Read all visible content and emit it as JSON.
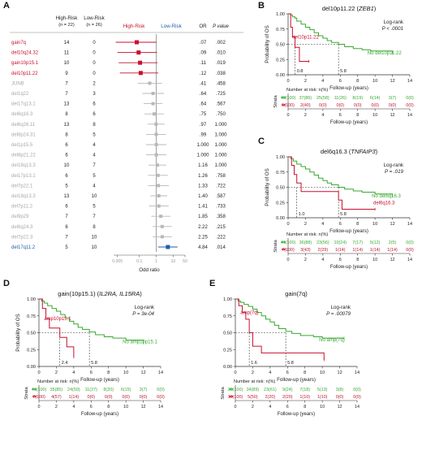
{
  "figure": {
    "panel_labels": [
      "A",
      "B",
      "C",
      "D",
      "E"
    ]
  },
  "colors": {
    "high_risk": "#c8102e",
    "low_risk": "#1f5fa8",
    "group_green": "#3aa832",
    "group_red": "#c8102e",
    "nonsig_gray": "#b8b8b8",
    "forest_header_high": "#c8102e",
    "forest_header_low": "#1f5fa8"
  },
  "chart_data": [
    {
      "type": "forest",
      "panel": "A",
      "headers": {
        "high_risk": "High-Risk",
        "high_risk_n": "(n = 22)",
        "low_risk": "Low-Risk",
        "low_risk_n": "(n = 26)",
        "direction_high": "High-Risk",
        "direction_low": "Low-Risk",
        "or": "OR",
        "pvalue": "P value"
      },
      "xlabel": "Odd ratio",
      "xscale": "log",
      "xlim": [
        0.003,
        50
      ],
      "xticks": [
        0.005,
        0.1,
        1,
        10,
        50
      ],
      "xtick_labels": [
        "0.005",
        "0.1",
        "1",
        "10",
        "50"
      ],
      "rows": [
        {
          "label": "gain7q",
          "high": "14",
          "low": "0",
          "or": 0.07,
          "or_text": ".07",
          "p": ".002",
          "sig": "high",
          "ci": [
            0.004,
            1.0
          ]
        },
        {
          "label": "del10q24.32",
          "high": "11",
          "low": "0",
          "or": 0.09,
          "or_text": ".09",
          "p": ".010",
          "sig": "high",
          "ci": [
            0.005,
            1.1
          ]
        },
        {
          "label": "gain10p15.1",
          "high": "10",
          "low": "0",
          "or": 0.11,
          "or_text": ".11",
          "p": ".019",
          "sig": "high",
          "ci": [
            0.006,
            1.2
          ]
        },
        {
          "label": "del10p11.22",
          "high": "9",
          "low": "0",
          "or": 0.12,
          "or_text": ".12",
          "p": ".038",
          "sig": "high",
          "ci": [
            0.007,
            1.3
          ]
        },
        {
          "label": "JUNB",
          "high": "7",
          "low": "2",
          "or": 0.41,
          "or_text": ".41",
          "p": ".458",
          "sig": "none",
          "ci": [
            0.08,
            2.2
          ]
        },
        {
          "label": "del1q22",
          "high": "7",
          "low": "3",
          "or": 0.64,
          "or_text": ".64",
          "p": ".725",
          "sig": "none",
          "ci": [
            0.15,
            2.8
          ]
        },
        {
          "label": "del17q13.1",
          "high": "13",
          "low": "6",
          "or": 0.64,
          "or_text": ".64",
          "p": ".567",
          "sig": "none",
          "ci": [
            0.18,
            2.3
          ]
        },
        {
          "label": "del6q16.3",
          "high": "8",
          "low": "6",
          "or": 0.75,
          "or_text": ".75",
          "p": ".750",
          "sig": "none",
          "ci": [
            0.2,
            2.8
          ]
        },
        {
          "label": "del6q26.11",
          "high": "13",
          "low": "8",
          "or": 0.97,
          "or_text": ".97",
          "p": "1.000",
          "sig": "none",
          "ci": [
            0.3,
            3.1
          ]
        },
        {
          "label": "del8p24.31",
          "high": "8",
          "low": "5",
          "or": 0.99,
          "or_text": ".99",
          "p": "1.000",
          "sig": "none",
          "ci": [
            0.25,
            3.8
          ]
        },
        {
          "label": "del1p15.5",
          "high": "6",
          "low": "4",
          "or": 1.0,
          "or_text": "1.000",
          "p": "1.000",
          "sig": "none",
          "ci": [
            0.25,
            4.0
          ]
        },
        {
          "label": "del8p21.22",
          "high": "6",
          "low": "4",
          "or": 1.0,
          "or_text": "1.000",
          "p": "1.000",
          "sig": "none",
          "ci": [
            0.25,
            4.0
          ]
        },
        {
          "label": "del18q13.3",
          "high": "10",
          "low": "7",
          "or": 1.16,
          "or_text": "1.16",
          "p": "1.000",
          "sig": "none",
          "ci": [
            0.35,
            3.9
          ]
        },
        {
          "label": "del17p13.1",
          "high": "6",
          "low": "5",
          "or": 1.26,
          "or_text": "1.26",
          "p": ".758",
          "sig": "none",
          "ci": [
            0.33,
            4.8
          ]
        },
        {
          "label": "del7p22.1",
          "high": "5",
          "low": "4",
          "or": 1.33,
          "or_text": "1.33",
          "p": ".722",
          "sig": "none",
          "ci": [
            0.32,
            5.5
          ]
        },
        {
          "label": "del18q13.3",
          "high": "13",
          "low": "10",
          "or": 1.4,
          "or_text": "1.40",
          "p": ".587",
          "sig": "none",
          "ci": [
            0.45,
            4.4
          ]
        },
        {
          "label": "del7p11.2",
          "high": "6",
          "low": "5",
          "or": 1.41,
          "or_text": "1.41",
          "p": ".733",
          "sig": "none",
          "ci": [
            0.37,
            5.4
          ]
        },
        {
          "label": "del9p29",
          "high": "7",
          "low": "7",
          "or": 1.85,
          "or_text": "1.85",
          "p": ".358",
          "sig": "none",
          "ci": [
            0.5,
            6.8
          ]
        },
        {
          "label": "del6q24.3",
          "high": "6",
          "low": "8",
          "or": 2.22,
          "or_text": "2.22",
          "p": ".215",
          "sig": "none",
          "ci": [
            0.6,
            8.2
          ]
        },
        {
          "label": "del7p22.3",
          "high": "7",
          "low": "10",
          "or": 2.25,
          "or_text": "2.25",
          "p": ".222",
          "sig": "none",
          "ci": [
            0.62,
            8.2
          ]
        },
        {
          "label": "del17q11.2",
          "high": "5",
          "low": "10",
          "or": 4.84,
          "or_text": "4.84",
          "p": ".014",
          "sig": "low",
          "ci": [
            1.3,
            18
          ]
        }
      ]
    },
    {
      "type": "line",
      "panel": "B",
      "title": "del10p11.22 (",
      "title_italic": "ZEB1",
      "title_end": ")",
      "xlabel": "Follow-up (years)",
      "ylabel": "Probability of OS",
      "xlim": [
        0,
        14
      ],
      "ylim": [
        0,
        1
      ],
      "xticks": [
        0,
        2,
        4,
        6,
        8,
        10,
        12,
        14
      ],
      "yticks": [
        0,
        0.25,
        0.5,
        0.75,
        1.0
      ],
      "ytick_labels": [
        "0.00",
        "0.25",
        "0.50",
        "0.75",
        "1.00"
      ],
      "test": "Log-rank",
      "pvalue": "P < .0001",
      "median_markers": [
        {
          "x": 0.8,
          "label": "0.8"
        },
        {
          "x": 5.8,
          "label": "5.8"
        }
      ],
      "series": [
        {
          "name": "No del10p11.22",
          "color": "green",
          "x": [
            0,
            0.3,
            0.5,
            0.8,
            1.0,
            1.5,
            2.0,
            2.5,
            3.0,
            3.5,
            4.0,
            4.5,
            5.0,
            5.8,
            6.5,
            7.5,
            8.5,
            9.5,
            12.0
          ],
          "y": [
            1.0,
            0.98,
            0.95,
            0.93,
            0.88,
            0.83,
            0.78,
            0.74,
            0.69,
            0.64,
            0.6,
            0.56,
            0.53,
            0.5,
            0.46,
            0.43,
            0.41,
            0.39,
            0.36
          ]
        },
        {
          "name": "del10p11.22",
          "color": "red",
          "x": [
            0,
            0.3,
            0.5,
            0.8,
            1.3,
            2.4
          ],
          "y": [
            1.0,
            0.78,
            0.62,
            0.45,
            0.22,
            0.22
          ]
        }
      ],
      "risk_table": {
        "title": "Number at risk: n(%)",
        "strata_label": "Strata",
        "rows": [
          {
            "color": "green",
            "values": [
              "43(100)",
              "37(86)",
              "25(58)",
              "11(26)",
              "8(19)",
              "6(14)",
              "3(7)",
              "0(0)"
            ]
          },
          {
            "color": "red",
            "values": [
              "5(100)",
              "2(40)",
              "0(0)",
              "0(0)",
              "0(0)",
              "0(0)",
              "0(0)",
              "0(0)"
            ]
          }
        ]
      }
    },
    {
      "type": "line",
      "panel": "C",
      "title": "del6q16.3 (",
      "title_italic": "TNFAIP3",
      "title_end": ")",
      "xlabel": "Follow-up (years)",
      "ylabel": "Probability of OS",
      "xlim": [
        0,
        14
      ],
      "ylim": [
        0,
        1
      ],
      "xticks": [
        0,
        2,
        4,
        6,
        8,
        10,
        12,
        14
      ],
      "yticks": [
        0,
        0.25,
        0.5,
        0.75,
        1.0
      ],
      "ytick_labels": [
        "0.00",
        "0.25",
        "0.50",
        "0.75",
        "1.00"
      ],
      "test": "Log-rank",
      "pvalue": "P = .019",
      "median_markers": [
        {
          "x": 1.0,
          "label": "1.0"
        },
        {
          "x": 5.8,
          "label": "5.8"
        }
      ],
      "series": [
        {
          "name": "No del6q16.3",
          "color": "green",
          "x": [
            0,
            0.3,
            0.6,
            1.0,
            1.5,
            2.0,
            2.5,
            3.0,
            3.5,
            4.0,
            4.5,
            5.0,
            5.8,
            6.5,
            7.5,
            8.5,
            10.0,
            12.0
          ],
          "y": [
            1.0,
            0.97,
            0.93,
            0.88,
            0.84,
            0.8,
            0.75,
            0.7,
            0.65,
            0.61,
            0.57,
            0.54,
            0.5,
            0.47,
            0.44,
            0.42,
            0.39,
            0.36
          ]
        },
        {
          "name": "del6q16.3",
          "color": "red",
          "x": [
            0,
            0.4,
            0.7,
            1.0,
            1.5,
            2.0,
            3.0,
            5.8,
            6.2,
            10.0
          ],
          "y": [
            1.0,
            0.86,
            0.71,
            0.57,
            0.43,
            0.43,
            0.43,
            0.29,
            0.14,
            0.14
          ]
        }
      ],
      "risk_table": {
        "title": "Number at risk: n(%)",
        "strata_label": "Strata",
        "rows": [
          {
            "color": "green",
            "values": [
              "41(100)",
              "36(88)",
              "23(56)",
              "10(24)",
              "7(17)",
              "5(12)",
              "2(5)",
              "0(0)"
            ]
          },
          {
            "color": "red",
            "values": [
              "7(100)",
              "3(43)",
              "2(29)",
              "1(14)",
              "1(14)",
              "1(14)",
              "1(14)",
              "0(0)"
            ]
          }
        ]
      }
    },
    {
      "type": "line",
      "panel": "D",
      "title": "gain(10p15.1) (",
      "title_italic": "IL2RA, IL15RA",
      "title_end": ")",
      "xlabel": "Follow-up (years)",
      "ylabel": "Probability of OS",
      "xlim": [
        0,
        14
      ],
      "ylim": [
        0,
        1
      ],
      "xticks": [
        0,
        2,
        4,
        6,
        8,
        10,
        12,
        14
      ],
      "yticks": [
        0,
        0.25,
        0.5,
        0.75,
        1.0
      ],
      "ytick_labels": [
        "0.00",
        "0.25",
        "0.50",
        "0.75",
        "1.00"
      ],
      "test": "Log-rank",
      "pvalue": "P = 3e-04",
      "median_markers": [
        {
          "x": 2.4,
          "label": "2.4"
        },
        {
          "x": 5.8,
          "label": "5.8"
        }
      ],
      "series": [
        {
          "name": "No amp10p15.1",
          "color": "green",
          "x": [
            0,
            0.3,
            0.6,
            1.0,
            1.5,
            2.0,
            2.5,
            3.0,
            3.5,
            4.0,
            4.5,
            5.0,
            5.8,
            6.5,
            7.5,
            8.5,
            10.0,
            12.0
          ],
          "y": [
            1.0,
            0.97,
            0.94,
            0.9,
            0.86,
            0.82,
            0.77,
            0.72,
            0.67,
            0.63,
            0.58,
            0.55,
            0.51,
            0.47,
            0.44,
            0.42,
            0.39,
            0.35
          ]
        },
        {
          "name": "amp10p15.1",
          "color": "red",
          "x": [
            0,
            0.4,
            0.8,
            1.2,
            2.0,
            2.4,
            3.2,
            4.0
          ],
          "y": [
            1.0,
            0.86,
            0.71,
            0.57,
            0.57,
            0.43,
            0.29,
            0.14
          ]
        }
      ],
      "risk_table": {
        "title": "Number at risk: n(%)",
        "strata_label": "Strata",
        "rows": [
          {
            "color": "green",
            "values": [
              "41(100)",
              "35(85)",
              "24(59)",
              "11(27)",
              "8(20)",
              "6(15)",
              "3(7)",
              "0(0)"
            ]
          },
          {
            "color": "red",
            "values": [
              "7(100)",
              "4(57)",
              "1(14)",
              "0(0)",
              "0(0)",
              "0(0)",
              "0(0)",
              "0(0)"
            ]
          }
        ]
      }
    },
    {
      "type": "line",
      "panel": "E",
      "title": "gain(7q)",
      "title_italic": "",
      "title_end": "",
      "xlabel": "Follow-up (years)",
      "ylabel": "",
      "xlim": [
        0,
        14
      ],
      "ylim": [
        0,
        1
      ],
      "xticks": [
        0,
        2,
        4,
        6,
        8,
        10,
        12,
        14
      ],
      "yticks": [
        0,
        0.25,
        0.5,
        0.75,
        1.0
      ],
      "ytick_labels": [
        "0.00",
        "0.25",
        "0.50",
        "0.75",
        "1.00"
      ],
      "test": "Log-rank",
      "pvalue": "P = .00079",
      "median_markers": [
        {
          "x": 1.6,
          "label": "1.6"
        },
        {
          "x": 5.8,
          "label": "5.8"
        }
      ],
      "series": [
        {
          "name": "No amp(7q)",
          "color": "green",
          "x": [
            0,
            0.3,
            0.6,
            1.0,
            1.5,
            2.0,
            2.5,
            3.0,
            3.5,
            4.0,
            4.5,
            5.0,
            5.8,
            6.5,
            7.5,
            9.0,
            10.0,
            12.5
          ],
          "y": [
            1.0,
            0.97,
            0.95,
            0.92,
            0.89,
            0.85,
            0.8,
            0.75,
            0.7,
            0.66,
            0.61,
            0.56,
            0.52,
            0.49,
            0.46,
            0.44,
            0.42,
            0.42
          ]
        },
        {
          "name": "amp(7q)",
          "color": "red",
          "x": [
            0,
            0.4,
            0.8,
            1.2,
            1.6,
            2.0,
            3.0,
            6.5,
            10.2
          ],
          "y": [
            1.0,
            0.9,
            0.8,
            0.7,
            0.5,
            0.3,
            0.2,
            0.2,
            0.1
          ]
        }
      ],
      "risk_table": {
        "title": "Number at risk: n(%)",
        "strata_label": "Strata",
        "rows": [
          {
            "color": "green",
            "values": [
              "38(100)",
              "34(89)",
              "23(61)",
              "9(24)",
              "7(18)",
              "5(13)",
              "3(8)",
              "0(0)"
            ]
          },
          {
            "color": "red",
            "values": [
              "10(100)",
              "5(50)",
              "2(20)",
              "2(20)",
              "1(10)",
              "1(10)",
              "0(0)",
              "0(0)"
            ]
          }
        ]
      }
    }
  ]
}
